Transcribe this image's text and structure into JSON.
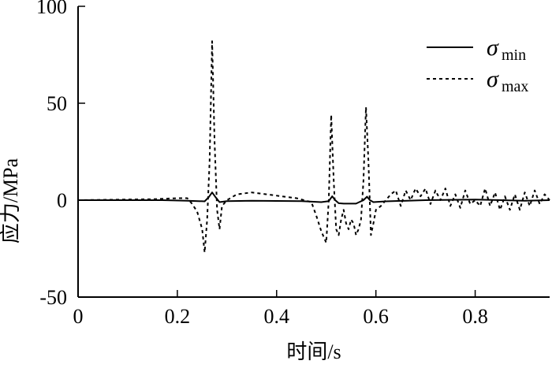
{
  "chart_data": {
    "type": "line",
    "xlabel": "时间/s",
    "ylabel": "应力/MPa",
    "xlim": [
      0,
      0.95
    ],
    "ylim": [
      -50,
      100
    ],
    "x_ticks": [
      0,
      0.2,
      0.4,
      0.6,
      0.8
    ],
    "x_tick_labels": [
      "0",
      "0.2",
      "0.4",
      "0.6",
      "0.8"
    ],
    "y_ticks": [
      -50,
      0,
      50,
      100
    ],
    "y_tick_labels": [
      "-50",
      "0",
      "50",
      "100"
    ],
    "grid": false,
    "legend_position": "top-right",
    "series": [
      {
        "name": "σmin",
        "symbol": "σ",
        "subscript": "min",
        "style": "solid",
        "color": "#000000",
        "x": [
          0,
          0.17,
          0.22,
          0.255,
          0.263,
          0.27,
          0.277,
          0.285,
          0.3,
          0.35,
          0.45,
          0.49,
          0.505,
          0.512,
          0.518,
          0.525,
          0.535,
          0.56,
          0.575,
          0.582,
          0.588,
          0.595,
          0.62,
          0.7,
          0.8,
          0.9,
          0.95
        ],
        "y": [
          0,
          0,
          -0.3,
          -0.6,
          1.5,
          4,
          1.5,
          -1,
          -0.5,
          -0.3,
          -0.5,
          -1,
          -0.5,
          2,
          0,
          -1.6,
          -1.8,
          -1.8,
          0,
          1.8,
          0,
          -1,
          -0.6,
          0,
          0.3,
          -0.3,
          0
        ]
      },
      {
        "name": "σmax",
        "symbol": "σ",
        "subscript": "max",
        "style": "dashed",
        "color": "#000000",
        "x": [
          0,
          0.15,
          0.2,
          0.22,
          0.23,
          0.24,
          0.25,
          0.255,
          0.26,
          0.265,
          0.27,
          0.275,
          0.28,
          0.285,
          0.29,
          0.3,
          0.32,
          0.35,
          0.38,
          0.41,
          0.44,
          0.47,
          0.48,
          0.49,
          0.5,
          0.505,
          0.51,
          0.515,
          0.52,
          0.525,
          0.53,
          0.535,
          0.54,
          0.545,
          0.55,
          0.555,
          0.56,
          0.565,
          0.57,
          0.575,
          0.58,
          0.585,
          0.59,
          0.595,
          0.6,
          0.61,
          0.62,
          0.63,
          0.64,
          0.65,
          0.66,
          0.67,
          0.68,
          0.69,
          0.7,
          0.71,
          0.72,
          0.73,
          0.74,
          0.75,
          0.76,
          0.77,
          0.78,
          0.79,
          0.8,
          0.81,
          0.82,
          0.83,
          0.84,
          0.85,
          0.86,
          0.87,
          0.88,
          0.89,
          0.9,
          0.91,
          0.92,
          0.93,
          0.94,
          0.95
        ],
        "y": [
          0,
          0.5,
          1,
          1,
          -2,
          -6,
          -15,
          -27,
          -10,
          20,
          82,
          30,
          -5,
          -15,
          -3,
          0,
          3,
          4,
          3,
          2,
          1,
          -1,
          -8,
          -16,
          -22,
          0,
          44,
          10,
          -15,
          -18,
          -10,
          -5,
          -12,
          -15,
          -10,
          -12,
          -18,
          -15,
          -10,
          10,
          48,
          20,
          -18,
          -12,
          -5,
          -3,
          0,
          3,
          5,
          -3,
          5,
          0,
          6,
          2,
          6,
          -2,
          5,
          0,
          6,
          -3,
          3,
          -4,
          5,
          -2,
          0,
          -3,
          6,
          -3,
          4,
          -5,
          2,
          -5,
          3,
          -5,
          4,
          -3,
          5,
          -2,
          3,
          0
        ]
      }
    ]
  }
}
